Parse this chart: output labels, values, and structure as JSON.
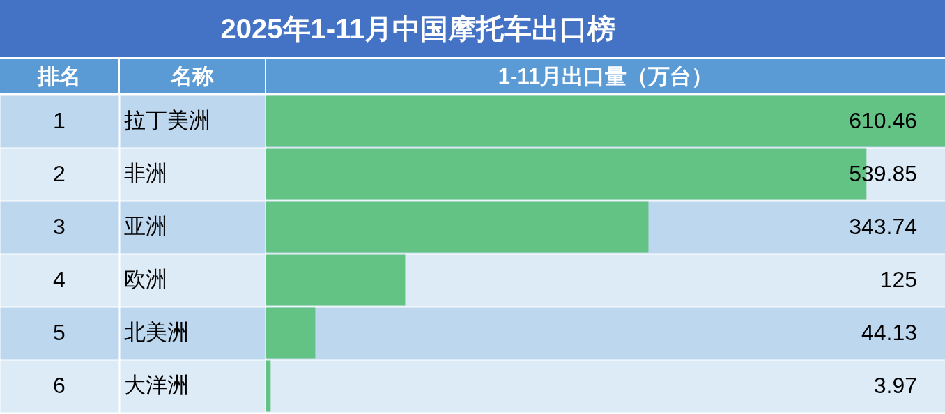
{
  "chart_data": {
    "type": "bar",
    "orientation": "horizontal",
    "title": "2025年1-11月中国摩托车出口榜",
    "xlabel": "1-11月出口量（万台）",
    "ylabel": "名称",
    "categories": [
      "拉丁美洲",
      "非洲",
      "亚洲",
      "欧洲",
      "北美洲",
      "大洋洲"
    ],
    "values": [
      610.46,
      539.85,
      343.74,
      125,
      44.13,
      3.97
    ],
    "color": "#63c384",
    "data_labels": true,
    "grid": "y",
    "annotations": [
      "排名",
      "1",
      "2",
      "3",
      "4",
      "5",
      "6"
    ]
  }
}
